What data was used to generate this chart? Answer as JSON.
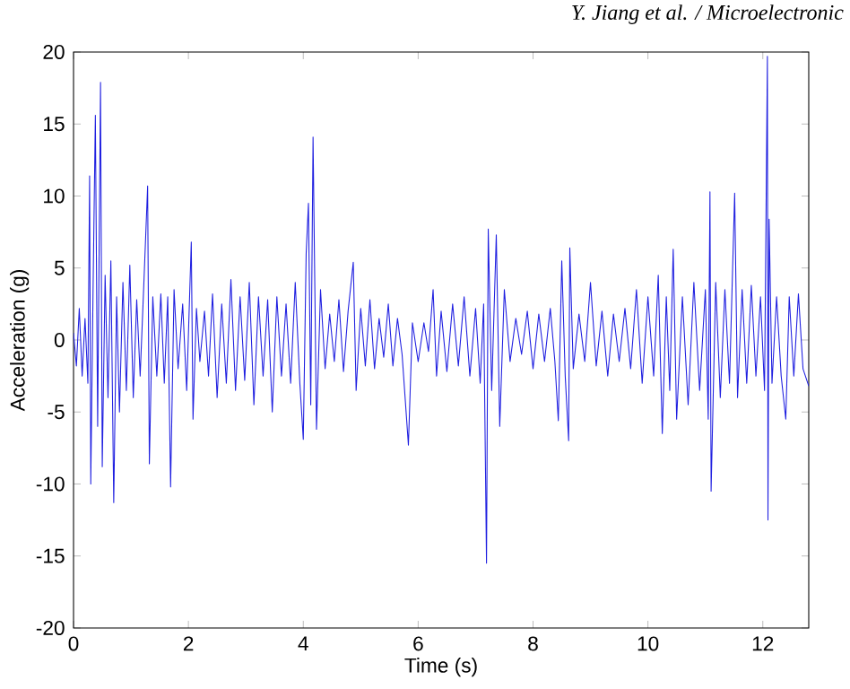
{
  "chart_data": {
    "type": "line",
    "xlabel": "Time (s)",
    "ylabel": "Acceleration (g)",
    "annotations": [
      "Y. Jiang et al. / Microelectronic"
    ],
    "xlim": [
      0,
      12.8
    ],
    "ylim": [
      -20,
      20
    ],
    "xticks": [
      0,
      2,
      4,
      6,
      8,
      10,
      12
    ],
    "yticks": [
      -20,
      -15,
      -10,
      -5,
      0,
      5,
      10,
      15,
      20
    ],
    "grid": false,
    "marker": "none",
    "line_style": "solid",
    "series": [
      {
        "color": "#1f1fe0",
        "x": [
          0,
          0.05,
          0.1,
          0.15,
          0.2,
          0.25,
          0.28,
          0.3,
          0.34,
          0.38,
          0.42,
          0.47,
          0.5,
          0.55,
          0.6,
          0.65,
          0.7,
          0.75,
          0.8,
          0.86,
          0.92,
          0.98,
          1.04,
          1.1,
          1.16,
          1.22,
          1.29,
          1.32,
          1.38,
          1.45,
          1.52,
          1.58,
          1.64,
          1.69,
          1.75,
          1.82,
          1.9,
          1.97,
          2.05,
          2.08,
          2.14,
          2.2,
          2.28,
          2.35,
          2.42,
          2.5,
          2.58,
          2.66,
          2.74,
          2.82,
          2.9,
          2.98,
          3.06,
          3.14,
          3.22,
          3.3,
          3.38,
          3.46,
          3.54,
          3.62,
          3.7,
          3.78,
          3.86,
          3.94,
          4.0,
          4.05,
          4.09,
          4.13,
          4.17,
          4.23,
          4.3,
          4.38,
          4.46,
          4.54,
          4.62,
          4.7,
          4.78,
          4.87,
          4.92,
          5.0,
          5.08,
          5.16,
          5.24,
          5.32,
          5.4,
          5.48,
          5.56,
          5.64,
          5.72,
          5.83,
          5.9,
          6.0,
          6.1,
          6.18,
          6.26,
          6.32,
          6.4,
          6.5,
          6.6,
          6.7,
          6.8,
          6.9,
          7.0,
          7.08,
          7.14,
          7.19,
          7.22,
          7.28,
          7.36,
          7.42,
          7.5,
          7.6,
          7.7,
          7.8,
          7.9,
          8.0,
          8.1,
          8.2,
          8.3,
          8.38,
          8.44,
          8.5,
          8.56,
          8.62,
          8.64,
          8.7,
          8.8,
          8.9,
          9.0,
          9.1,
          9.2,
          9.3,
          9.4,
          9.5,
          9.6,
          9.7,
          9.8,
          9.9,
          10.0,
          10.1,
          10.18,
          10.25,
          10.32,
          10.38,
          10.44,
          10.5,
          10.6,
          10.7,
          10.8,
          10.9,
          11.0,
          11.05,
          11.08,
          11.1,
          11.18,
          11.26,
          11.34,
          11.42,
          11.51,
          11.56,
          11.64,
          11.72,
          11.8,
          11.88,
          11.96,
          12.03,
          12.08,
          12.09,
          12.11,
          12.16,
          12.24,
          12.32,
          12.4,
          12.46,
          12.54,
          12.62,
          12.7,
          12.8
        ],
        "values": [
          0.5,
          -1.8,
          2.2,
          -2.5,
          1.5,
          -3.0,
          11.4,
          -10.0,
          3.5,
          15.6,
          -6.0,
          17.9,
          -8.8,
          4.5,
          -4.0,
          5.5,
          -11.3,
          3.0,
          -5.0,
          4.0,
          -3.5,
          5.2,
          -4.0,
          2.8,
          -2.5,
          3.5,
          10.7,
          -8.6,
          3.0,
          -2.5,
          3.2,
          -3.0,
          3.0,
          -10.2,
          3.5,
          -2.0,
          2.5,
          -3.5,
          6.8,
          -5.5,
          2.2,
          -1.5,
          2.0,
          -2.5,
          3.2,
          -4.0,
          2.5,
          -3.0,
          4.2,
          -3.5,
          3.0,
          -2.8,
          4.0,
          -4.5,
          3.0,
          -2.5,
          2.8,
          -5.0,
          3.0,
          -2.5,
          2.5,
          -3.0,
          4.0,
          -3.0,
          -6.9,
          6.0,
          9.5,
          -4.5,
          14.1,
          -6.2,
          3.5,
          -2.0,
          1.8,
          -1.5,
          2.8,
          -2.2,
          2.0,
          5.4,
          -3.5,
          2.2,
          -1.8,
          2.8,
          -2.0,
          1.5,
          -1.2,
          2.5,
          -1.8,
          1.5,
          -1.0,
          -7.3,
          1.2,
          -1.5,
          1.2,
          -0.8,
          3.5,
          -2.5,
          2.0,
          -2.2,
          2.5,
          -1.8,
          3.0,
          -2.5,
          2.2,
          -3.0,
          2.5,
          -15.5,
          7.7,
          -3.5,
          7.3,
          -6.0,
          3.5,
          -1.5,
          1.5,
          -1.0,
          2.0,
          -2.0,
          1.8,
          -1.5,
          2.2,
          -1.5,
          -5.6,
          5.5,
          -2.5,
          -7.0,
          6.4,
          -2.0,
          1.8,
          -1.5,
          4.0,
          -1.8,
          2.0,
          -2.5,
          1.8,
          -1.5,
          2.2,
          -2.0,
          3.5,
          -3.0,
          3.0,
          -2.5,
          4.5,
          -6.5,
          3.0,
          -3.5,
          6.3,
          -5.5,
          3.0,
          -4.5,
          4.0,
          -3.5,
          3.5,
          -5.5,
          10.3,
          -10.5,
          4.0,
          -4.0,
          3.5,
          -3.0,
          10.2,
          -4.0,
          3.5,
          -3.0,
          3.8,
          -2.5,
          3.0,
          -3.5,
          19.7,
          -12.5,
          8.4,
          -3.0,
          3.0,
          -2.5,
          -5.5,
          3.0,
          -2.5,
          3.2,
          -2.0,
          -3.2
        ]
      }
    ]
  }
}
